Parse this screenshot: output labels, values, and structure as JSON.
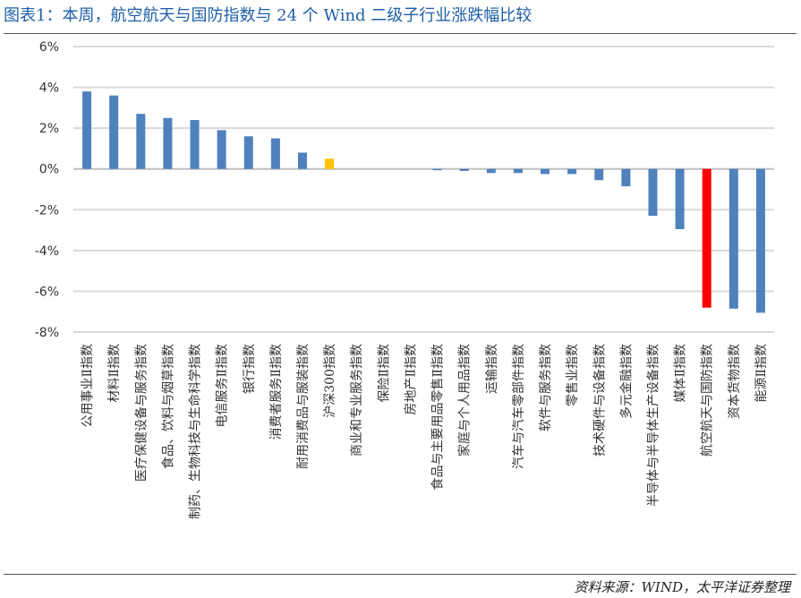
{
  "header": {
    "title": "图表1：本周，航空航天与国防指数与 24 个 Wind 二级子行业涨跌幅比较"
  },
  "footer": {
    "source": "资料来源：WIND，太平洋证券整理"
  },
  "chart_data": {
    "type": "bar",
    "title": "",
    "xlabel": "",
    "ylabel": "",
    "ylim": [
      -8,
      6
    ],
    "yticks": [
      "6%",
      "4%",
      "2%",
      "0%",
      "-2%",
      "-4%",
      "-6%",
      "-8%"
    ],
    "grid": true,
    "legend": "none",
    "colors": {
      "default": "#4f81bd",
      "benchmark": "#ffc000",
      "highlight": "#ff0000"
    },
    "categories": [
      "公用事业Ⅱ指数",
      "材料Ⅱ指数",
      "医疗保健设备与服务指数",
      "食品、饮料与烟草指数",
      "制药、生物科技与生命科学指数",
      "电信服务Ⅱ指数",
      "银行指数",
      "消费者服务Ⅱ指数",
      "耐用消费品与服装指数",
      "沪深300指数",
      "商业和专业服务指数",
      "保险Ⅱ指数",
      "房地产Ⅱ指数",
      "食品与主要用品零售Ⅱ指数",
      "家庭与个人用品指数",
      "运输指数",
      "汽车与汽车零部件指数",
      "软件与服务指数",
      "零售业指数",
      "技术硬件与设备指数",
      "多元金融指数",
      "半导体与半导体生产设备指数",
      "媒体Ⅱ指数",
      "航空航天与国防指数",
      "资本货物指数",
      "能源Ⅱ指数"
    ],
    "values": [
      3.8,
      3.6,
      2.7,
      2.5,
      2.4,
      1.9,
      1.6,
      1.5,
      0.8,
      0.5,
      0.0,
      0.0,
      0.0,
      -0.05,
      -0.1,
      -0.2,
      -0.2,
      -0.25,
      -0.25,
      -0.55,
      -0.85,
      -2.3,
      -2.95,
      -6.8,
      -6.85,
      -7.05
    ],
    "bar_colors": [
      "default",
      "default",
      "default",
      "default",
      "default",
      "default",
      "default",
      "default",
      "default",
      "benchmark",
      "default",
      "default",
      "default",
      "default",
      "default",
      "default",
      "default",
      "default",
      "default",
      "default",
      "default",
      "default",
      "default",
      "highlight",
      "default",
      "default"
    ]
  }
}
